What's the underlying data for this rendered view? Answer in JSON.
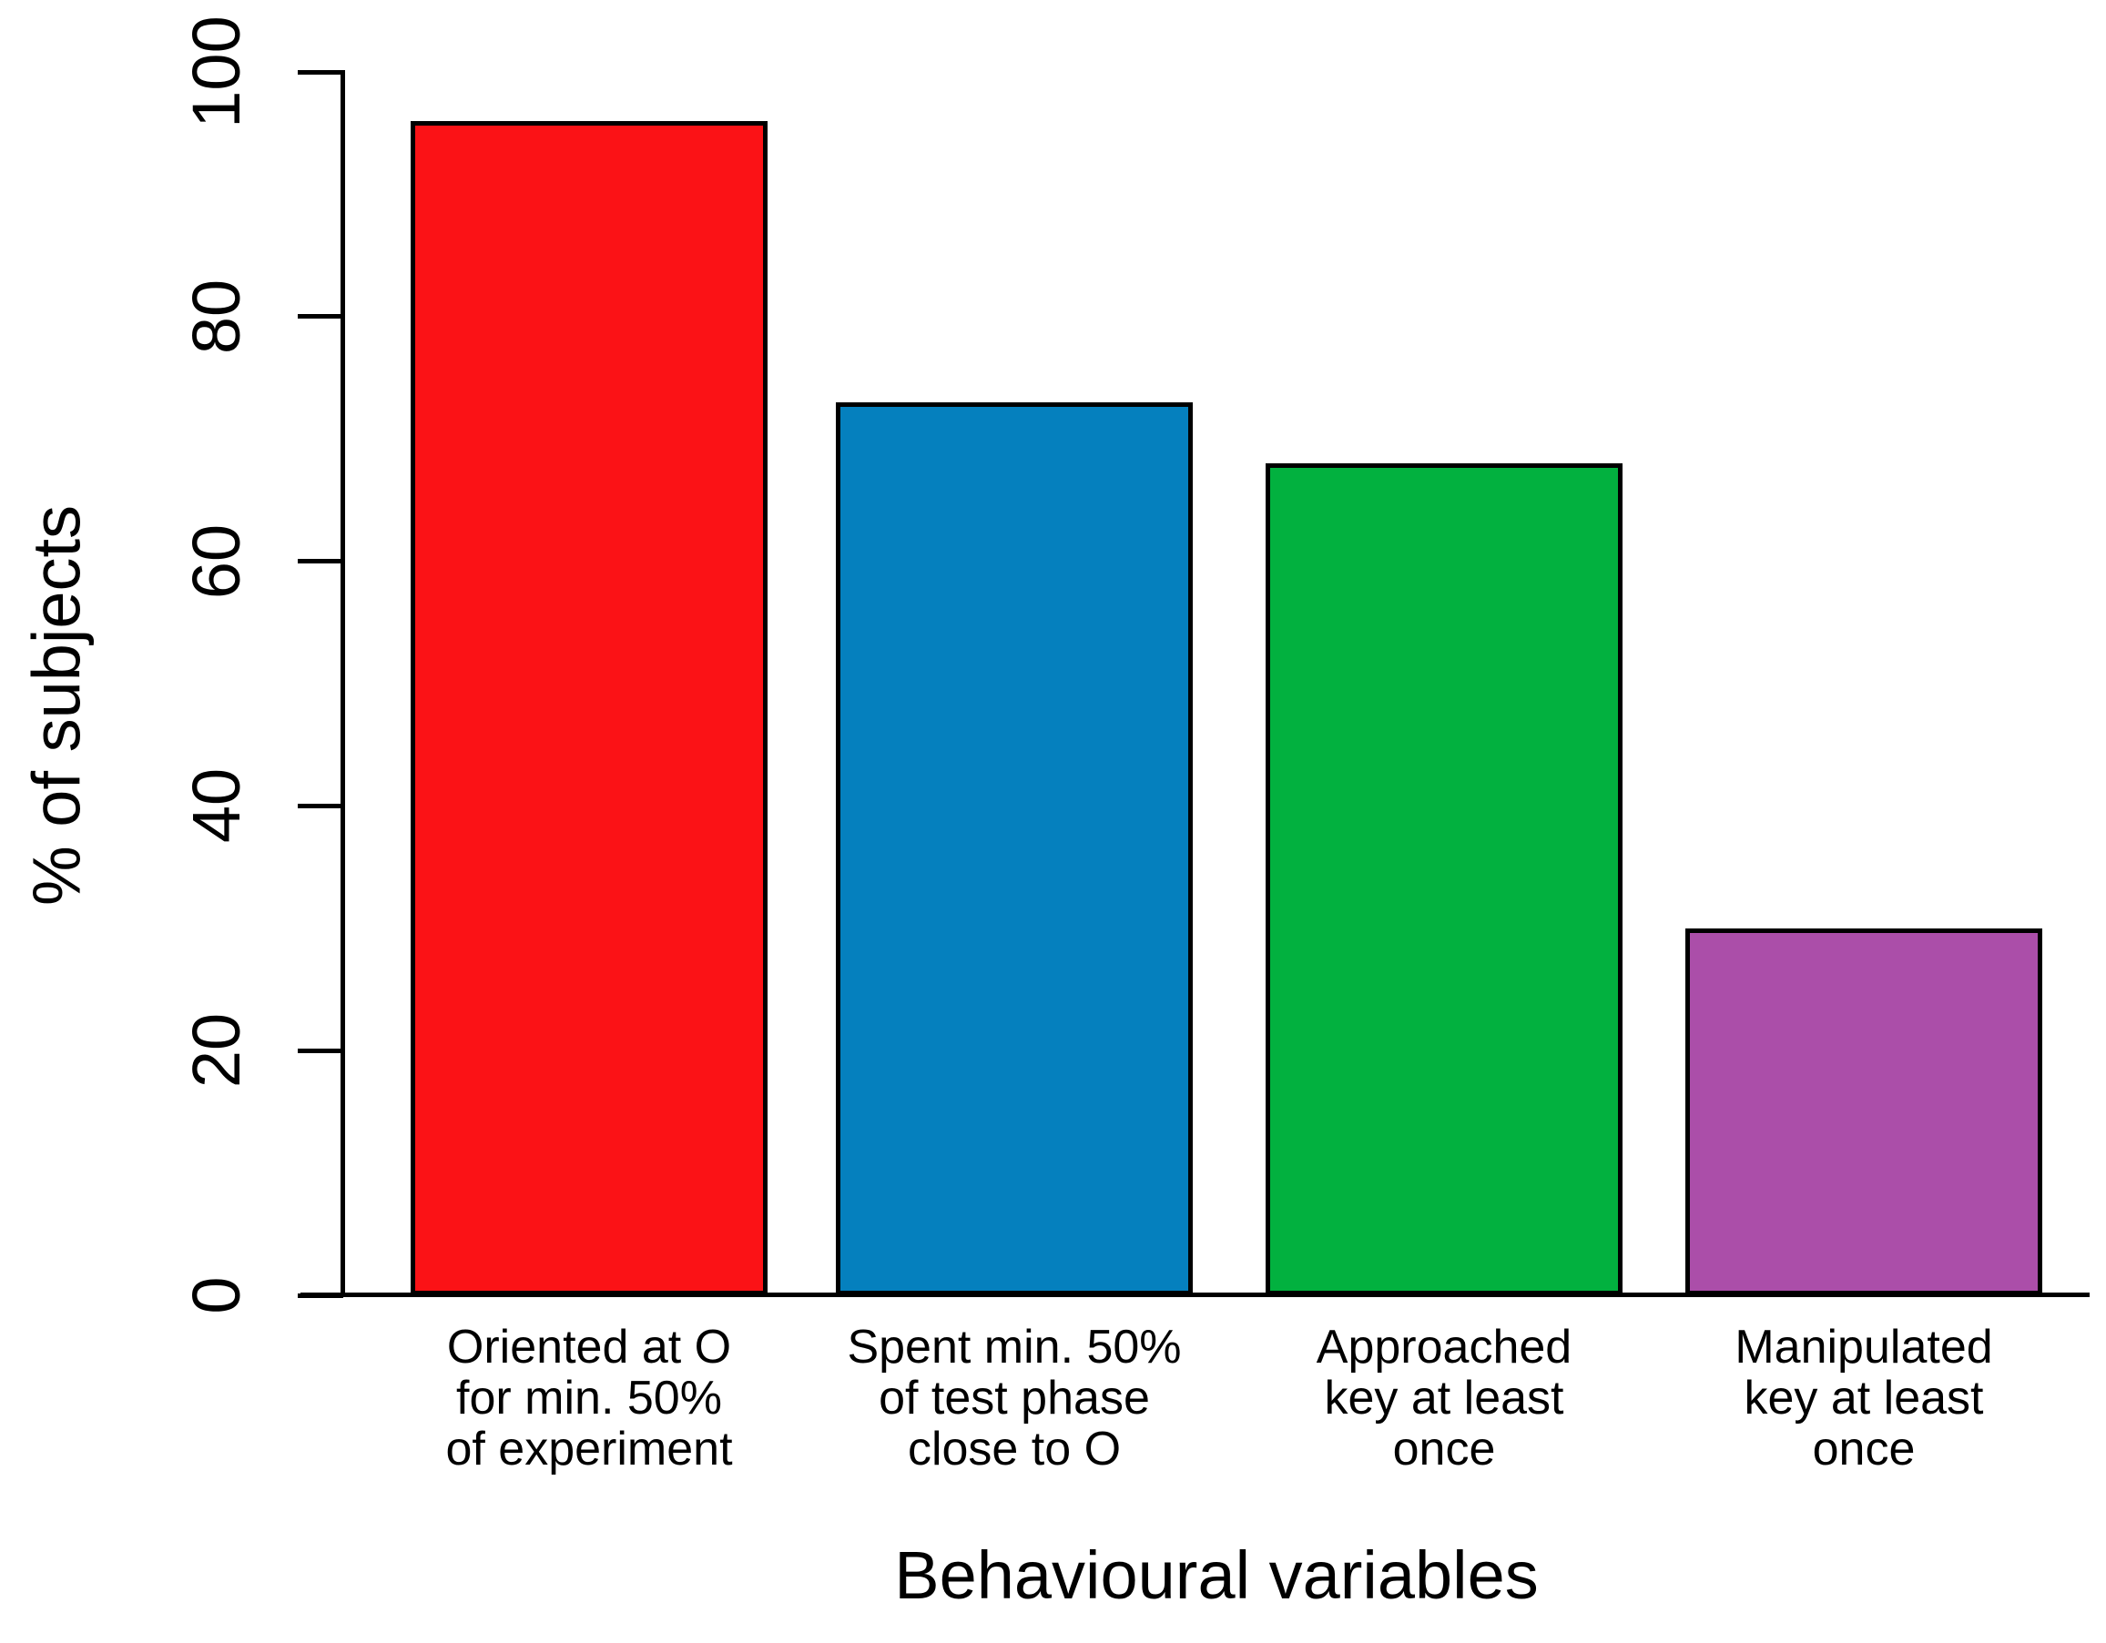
{
  "chart_data": {
    "type": "bar",
    "title": "",
    "xlabel": "Behavioural variables",
    "ylabel": "% of subjects",
    "categories": [
      "Oriented at O\nfor min. 50%\nof experiment",
      "Spent min. 50%\nof test phase\nclose to O",
      "Approached\nkey at least\nonce",
      "Manipulated\nkey at least\nonce"
    ],
    "values": [
      96,
      73,
      68,
      30
    ],
    "bar_colors": [
      "#fb1216",
      "#0580be",
      "#02b13f",
      "#ab4ea9"
    ],
    "axis_color": "#000000",
    "ylim": [
      0,
      100
    ],
    "yticks": [
      0,
      20,
      40,
      60,
      80,
      100
    ],
    "grid": false,
    "legend_position": "none"
  }
}
